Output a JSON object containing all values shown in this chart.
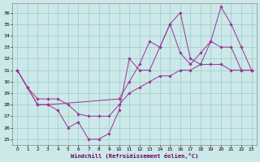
{
  "xlabel": "Windchill (Refroidissement éolien,°C)",
  "background_color": "#cce8e8",
  "line_color": "#993399",
  "grid_color": "#99cccc",
  "xlim": [
    -0.5,
    23.5
  ],
  "ylim": [
    24.5,
    36.8
  ],
  "yticks": [
    25,
    26,
    27,
    28,
    29,
    30,
    31,
    32,
    33,
    34,
    35,
    36
  ],
  "xticks": [
    0,
    1,
    2,
    3,
    4,
    5,
    6,
    7,
    8,
    9,
    10,
    11,
    12,
    13,
    14,
    15,
    16,
    17,
    18,
    19,
    20,
    21,
    22,
    23
  ],
  "line1_x": [
    0,
    1,
    2,
    3,
    4,
    5,
    6,
    7,
    8,
    9,
    10,
    11,
    12,
    13,
    14,
    15,
    16,
    17,
    18,
    19,
    20,
    21,
    22,
    23
  ],
  "line1_y": [
    31,
    29.5,
    28,
    28,
    27.5,
    26,
    26.5,
    25,
    25,
    25.5,
    27.5,
    32,
    31,
    31,
    33,
    35,
    36,
    32,
    31.5,
    33.5,
    36.5,
    35,
    33,
    31
  ],
  "line2_x": [
    0,
    2,
    3,
    10,
    11,
    12,
    13,
    14,
    15,
    16,
    17,
    18,
    19,
    20,
    21,
    22,
    23
  ],
  "line2_y": [
    31,
    28,
    28,
    28.5,
    30,
    31.5,
    33.5,
    33,
    35,
    32.5,
    31.5,
    32.5,
    33.5,
    33,
    33,
    31,
    31
  ],
  "line3_x": [
    0,
    1,
    2,
    3,
    4,
    5,
    6,
    7,
    8,
    9,
    10,
    11,
    12,
    13,
    14,
    15,
    16,
    17,
    18,
    19,
    20,
    21,
    22,
    23
  ],
  "line3_y": [
    31,
    29.5,
    28.5,
    28.5,
    28.5,
    28,
    27.2,
    27,
    27,
    27,
    28,
    29,
    29.5,
    30,
    30.5,
    30.5,
    31,
    31,
    31.5,
    31.5,
    31.5,
    31,
    31,
    31
  ]
}
